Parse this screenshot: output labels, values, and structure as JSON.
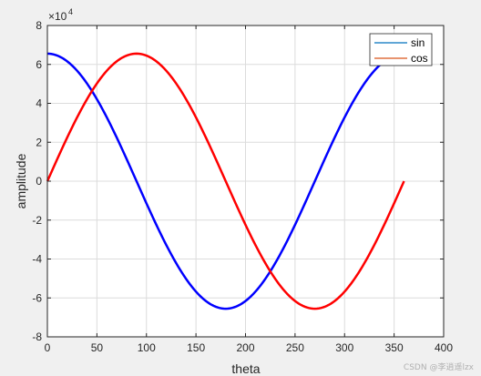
{
  "chart_data": {
    "type": "line",
    "xlabel": "theta",
    "ylabel": "amplitude",
    "xlim": [
      0,
      400
    ],
    "ylim": [
      -80000,
      80000
    ],
    "y_exponent_label": "×10",
    "y_exponent_power": "4",
    "x_ticks": [
      "0",
      "50",
      "100",
      "150",
      "200",
      "250",
      "300",
      "350",
      "400"
    ],
    "y_ticks": [
      "-8",
      "-6",
      "-4",
      "-2",
      "0",
      "2",
      "4",
      "6",
      "8"
    ],
    "grid": true,
    "legend_location": "top-right",
    "series": [
      {
        "name": "sin",
        "legend_color": "#0072bd",
        "line_color": "#0000ff",
        "function": "cos",
        "amplitude": 65536,
        "x_range": [
          0,
          360
        ]
      },
      {
        "name": "cos",
        "legend_color": "#d95319",
        "line_color": "#ff0000",
        "function": "sin",
        "amplitude": 65536,
        "x_range": [
          0,
          360
        ]
      }
    ]
  },
  "watermark": "CSDN @李逍遥lzx"
}
